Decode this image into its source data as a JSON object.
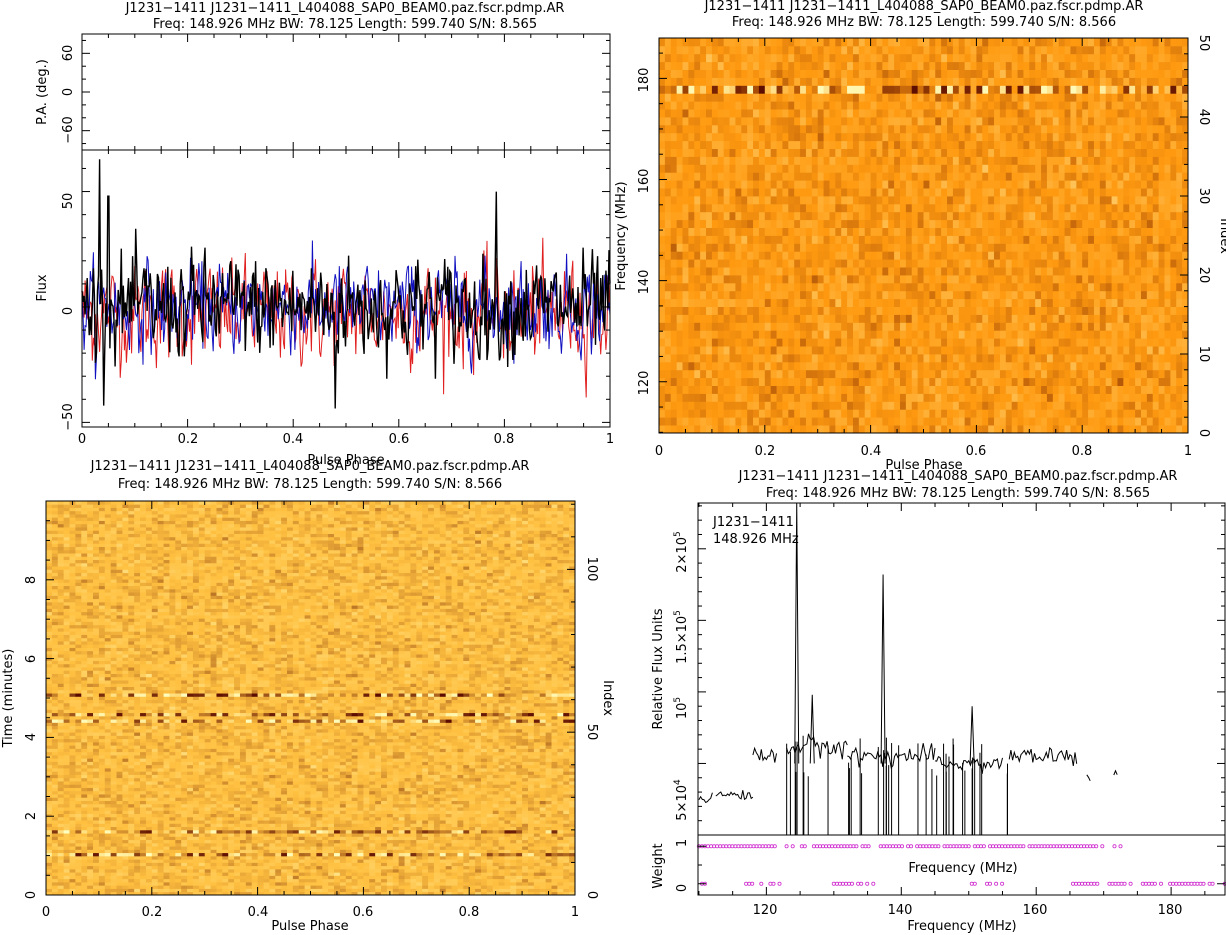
{
  "colors": {
    "stokes_i": "#000000",
    "linear": "#e02020",
    "circular": "#1010c0",
    "spectrum_line": "#000000",
    "weight_markers": "#d030d0",
    "heatmap_low": "#5a0a00",
    "heatmap_high": "#ffffc0",
    "freq_heatmap_base": "#ff9a10",
    "time_heatmap_base": "#ffc040"
  },
  "chart_data": [
    {
      "type": "line",
      "id": "profile",
      "title": "J1231−1411 J1231−1411_L404088_SAP0_BEAM0.paz.fscr.pdmp.AR",
      "subtitle": "Freq: 148.926 MHz BW: 78.125 Length: 599.740 S/N: 8.565",
      "pa_panel": {
        "ylabel": "P.A. (deg.)",
        "ylim": [
          -90,
          90
        ],
        "yticks": [
          "−60",
          "0",
          "60"
        ]
      },
      "xlabel": "Pulse Phase",
      "ylabel": "Flux",
      "xlim": [
        0,
        1
      ],
      "ylim": [
        -52,
        68
      ],
      "xticks": [
        "0",
        "0.2",
        "0.4",
        "0.6",
        "0.8",
        "1"
      ],
      "yticks": [
        "−50",
        "0",
        "50"
      ],
      "series": [
        {
          "role": "linear",
          "noise_sigma": 14,
          "offset": -2
        },
        {
          "role": "circular",
          "noise_sigma": 12,
          "offset": 0
        },
        {
          "role": "total",
          "noise_sigma": 14,
          "offset": 0,
          "peaks": [
            [
              0.033,
              64
            ],
            [
              0.48,
              -44
            ],
            [
              0.785,
              50
            ],
            [
              0.05,
              48
            ]
          ]
        }
      ]
    },
    {
      "type": "heatmap",
      "id": "freq_phase",
      "title": "J1231−1411 J1231−1411_L404088_SAP0_BEAM0.paz.fscr.pdmp.AR",
      "subtitle": "Freq: 148.926 MHz BW: 78.125 Length: 599.740 S/N: 8.566",
      "xlabel": "Pulse Phase",
      "ylabel": "Frequency (MHz)",
      "y2label": "Index",
      "xlim": [
        0,
        1
      ],
      "ylim": [
        109.863,
        187.988
      ],
      "y2lim": [
        0,
        50
      ],
      "xticks": [
        "0",
        "0.2",
        "0.4",
        "0.6",
        "0.8",
        "1"
      ],
      "yticks": [
        "120",
        "140",
        "160",
        "180"
      ],
      "y2ticks": [
        "0",
        "10",
        "20",
        "30",
        "40",
        "50"
      ],
      "rows": 50,
      "bright_rows": [
        43
      ]
    },
    {
      "type": "heatmap",
      "id": "time_phase",
      "title": "J1231−1411 J1231−1411_L404088_SAP0_BEAM0.paz.fscr.pdmp.AR",
      "subtitle": "Freq: 148.926 MHz BW: 78.125 Length: 599.740 S/N: 8.566",
      "xlabel": "Pulse Phase",
      "ylabel": "Time (minutes)",
      "y2label": "Index",
      "xlim": [
        0,
        1
      ],
      "ylim": [
        0,
        10
      ],
      "y2lim": [
        0,
        121
      ],
      "xticks": [
        "0",
        "0.2",
        "0.4",
        "0.6",
        "0.8",
        "1"
      ],
      "yticks": [
        "0",
        "2",
        "4",
        "6",
        "8"
      ],
      "y2ticks": [
        "0",
        "50",
        "100"
      ],
      "rows": 121,
      "bright_rows": [
        12,
        19,
        53,
        55,
        61
      ]
    },
    {
      "type": "line",
      "id": "bandpass",
      "title": "J1231−1411 J1231−1411_L404088_SAP0_BEAM0.paz.fscr.pdmp.AR",
      "subtitle": "Freq: 148.926 MHz BW: 78.125 Length: 599.740 S/N: 8.565",
      "annotation": [
        "J1231−1411",
        "148.926 MHz"
      ],
      "xlabel": "Frequency (MHz)",
      "ylabel": "Relative Flux Units",
      "xlim": [
        109.863,
        187.988
      ],
      "ylim": [
        0,
        232000
      ],
      "xticks": [
        "120",
        "140",
        "160",
        "180"
      ],
      "yticks": [
        {
          "base": "5×10",
          "exp": "4",
          "value": 50000
        },
        {
          "base": "10",
          "exp": "5",
          "value": 100000
        },
        {
          "base": "1.5×10",
          "exp": "5",
          "value": 150000
        },
        {
          "base": "2×10",
          "exp": "5",
          "value": 200000
        }
      ],
      "weight_panel": {
        "ylabel": "Weight",
        "inner_xlabel": "Frequency (MHz)",
        "yticks": [
          "0",
          "1"
        ],
        "ylim": [
          -0.3,
          1.3
        ]
      },
      "spectrum": {
        "base_segments": [
          [
            110.0,
            112.0,
            26000
          ],
          [
            112.5,
            118.0,
            28000
          ],
          [
            118.0,
            121.5,
            55000
          ],
          [
            123.0,
            132.0,
            62000
          ],
          [
            132.0,
            145.0,
            55000
          ],
          [
            145.0,
            155.0,
            50000
          ],
          [
            156.0,
            166.0,
            55000
          ],
          [
            167.5,
            168.0,
            40000
          ],
          [
            171.5,
            172.0,
            40000
          ]
        ],
        "peaks": [
          [
            124.5,
            232000
          ],
          [
            126.8,
            98000
          ],
          [
            137.3,
            182000
          ],
          [
            150.5,
            90000
          ]
        ]
      },
      "weights": {
        "one_ranges": [
          [
            110.0,
            121.5
          ],
          [
            123.0,
            172.5
          ]
        ],
        "zero_ranges": [
          [
            110.0,
            111.0
          ],
          [
            117.0,
            122.0
          ],
          [
            130.0,
            136.0
          ],
          [
            150.0,
            156.0
          ],
          [
            165.0,
            188.0
          ]
        ]
      }
    }
  ]
}
